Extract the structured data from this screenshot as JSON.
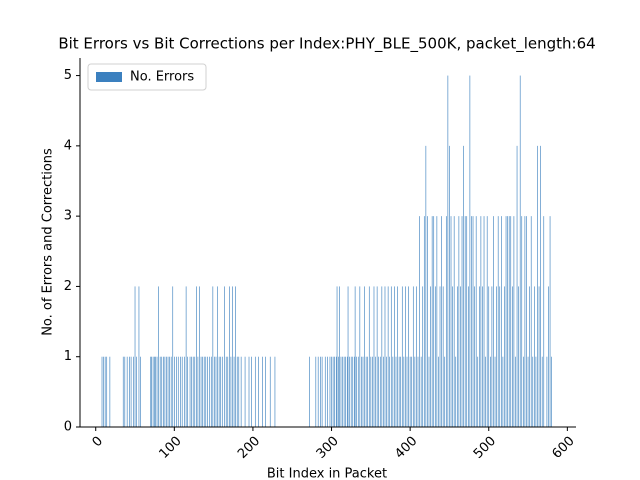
{
  "chart_data": {
    "type": "bar",
    "title": "Bit Errors vs Bit Corrections per Index:PHY_BLE_500K, packet_length:64",
    "x_label": "Bit Index in Packet",
    "y_label": "No. of Errors and Corrections",
    "legend": "upper left",
    "xlim": [
      -20,
      611
    ],
    "ylim": [
      0,
      5.25
    ],
    "xticks": [
      0,
      100,
      200,
      300,
      400,
      500,
      600
    ],
    "yticks": [
      0,
      1,
      2,
      3,
      4,
      5
    ],
    "x": [
      8,
      10,
      12,
      14,
      18,
      35,
      37,
      40,
      43,
      45,
      48,
      50,
      52,
      55,
      57,
      70,
      71,
      73,
      75,
      76,
      78,
      80,
      82,
      84,
      86,
      88,
      90,
      92,
      94,
      96,
      98,
      100,
      103,
      105,
      108,
      110,
      113,
      115,
      117,
      120,
      122,
      124,
      126,
      128,
      130,
      132,
      134,
      136,
      138,
      140,
      142,
      145,
      147,
      149,
      151,
      153,
      155,
      157,
      159,
      161,
      164,
      166,
      168,
      170,
      172,
      174,
      176,
      178,
      180,
      182,
      185,
      190,
      195,
      198,
      203,
      207,
      212,
      216,
      222,
      228,
      272,
      280,
      283,
      286,
      288,
      292,
      295,
      298,
      300,
      302,
      304,
      306,
      307,
      309,
      310,
      312,
      314,
      316,
      318,
      320,
      321,
      323,
      325,
      327,
      329,
      330,
      332,
      334,
      336,
      338,
      340,
      342,
      344,
      346,
      348,
      350,
      352,
      354,
      356,
      358,
      360,
      362,
      364,
      366,
      368,
      370,
      372,
      374,
      376,
      378,
      380,
      382,
      384,
      386,
      388,
      390,
      392,
      394,
      396,
      398,
      400,
      402,
      404,
      406,
      408,
      410,
      412,
      414,
      416,
      418,
      420,
      422,
      424,
      426,
      428,
      430,
      432,
      434,
      436,
      438,
      440,
      442,
      444,
      446,
      448,
      450,
      452,
      454,
      456,
      458,
      460,
      462,
      464,
      466,
      468,
      470,
      472,
      474,
      476,
      478,
      480,
      482,
      484,
      486,
      488,
      490,
      492,
      494,
      496,
      498,
      500,
      502,
      504,
      506,
      508,
      510,
      512,
      514,
      516,
      518,
      520,
      522,
      524,
      526,
      528,
      530,
      532,
      534,
      536,
      538,
      540,
      542,
      544,
      546,
      548,
      550,
      552,
      554,
      556,
      558,
      560,
      562,
      564,
      566,
      568,
      570,
      574,
      576,
      578,
      580
    ],
    "series": [
      {
        "name": "No. Errors",
        "color": "#3b80bf",
        "values": [
          1,
          1,
          1,
          1,
          1,
          1,
          1,
          1,
          1,
          1,
          1,
          2,
          1,
          2,
          1,
          1,
          1,
          1,
          1,
          1,
          1,
          2,
          1,
          1,
          1,
          1,
          1,
          1,
          1,
          1,
          2,
          1,
          1,
          1,
          1,
          1,
          1,
          2,
          1,
          1,
          1,
          1,
          1,
          2,
          1,
          2,
          1,
          1,
          1,
          1,
          1,
          1,
          1,
          2,
          1,
          1,
          2,
          1,
          1,
          1,
          2,
          1,
          1,
          2,
          1,
          2,
          1,
          2,
          1,
          1,
          1,
          1,
          1,
          1,
          1,
          1,
          1,
          1,
          1,
          1,
          1,
          1,
          1,
          1,
          1,
          1,
          1,
          1,
          1,
          1,
          1,
          1,
          2,
          1,
          2,
          1,
          1,
          1,
          1,
          1,
          2,
          1,
          1,
          1,
          1,
          2,
          1,
          1,
          2,
          1,
          1,
          2,
          1,
          1,
          2,
          1,
          1,
          2,
          1,
          2,
          1,
          1,
          2,
          1,
          2,
          1,
          2,
          1,
          2,
          1,
          2,
          1,
          2,
          1,
          1,
          2,
          1,
          2,
          1,
          2,
          1,
          1,
          2,
          1,
          2,
          1,
          3,
          1,
          2,
          3,
          4,
          3,
          1,
          2,
          3,
          3,
          2,
          3,
          1,
          2,
          3,
          2,
          1,
          3,
          5,
          4,
          3,
          2,
          3,
          1,
          2,
          3,
          2,
          3,
          4,
          3,
          3,
          2,
          5,
          3,
          3,
          2,
          3,
          1,
          2,
          3,
          2,
          3,
          1,
          3,
          2,
          1,
          2,
          3,
          1,
          2,
          3,
          2,
          3,
          1,
          2,
          3,
          3,
          3,
          3,
          2,
          3,
          1,
          4,
          2,
          5,
          3,
          1,
          3,
          3,
          1,
          2,
          3,
          1,
          2,
          1,
          4,
          2,
          4,
          1,
          3,
          1,
          2,
          3,
          1
        ]
      }
    ]
  }
}
